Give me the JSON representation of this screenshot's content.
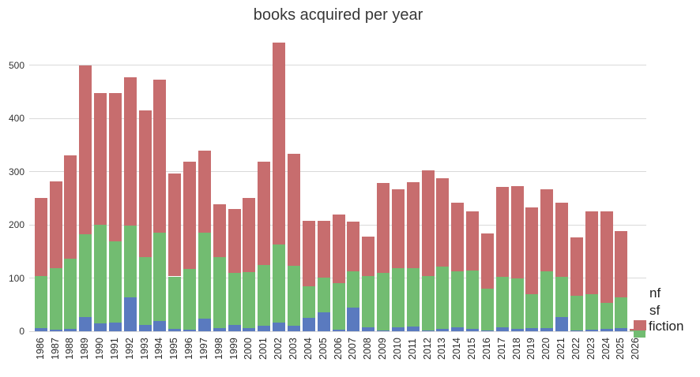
{
  "title": "books acquired per year",
  "colors": {
    "nf": "#5a7abf",
    "sf": "#72bc71",
    "fiction": "#c76d6e",
    "grid": "#d9d9d9",
    "title_text": "#383838",
    "tick_text": "#333333"
  },
  "legend": {
    "items": [
      {
        "label": "nf",
        "color": "#5a7abf"
      },
      {
        "label": "sf",
        "color": "#72bc71"
      },
      {
        "label": "fiction",
        "color": "#c76d6e"
      }
    ]
  },
  "y_axis": {
    "ticks": [
      0,
      100,
      200,
      300,
      400,
      500
    ]
  },
  "chart_data": {
    "type": "bar",
    "stacked": true,
    "title": "books acquired per year",
    "xlabel": "",
    "ylabel": "",
    "ylim": [
      0,
      555
    ],
    "grid": true,
    "legend_position": "right-bottom",
    "categories": [
      1986,
      1987,
      1988,
      1989,
      1990,
      1991,
      1992,
      1993,
      1994,
      1995,
      1996,
      1997,
      1998,
      1999,
      2000,
      2001,
      2002,
      2003,
      2004,
      2005,
      2006,
      2007,
      2008,
      2009,
      2010,
      2011,
      2012,
      2013,
      2014,
      2015,
      2016,
      2017,
      2018,
      2019,
      2020,
      2021,
      2022,
      2023,
      2024,
      2025,
      2026
    ],
    "series": [
      {
        "name": "nf",
        "color": "#5a7abf",
        "values": [
          6,
          3,
          4,
          27,
          15,
          16,
          63,
          12,
          20,
          4,
          3,
          24,
          6,
          12,
          6,
          11,
          17,
          10,
          25,
          35,
          3,
          44,
          7,
          2,
          8,
          9,
          2,
          4,
          8,
          4,
          2,
          7,
          4,
          6,
          6,
          27,
          2,
          3,
          4,
          6,
          0
        ]
      },
      {
        "name": "sf",
        "color": "#72bc71",
        "values": [
          97,
          115,
          133,
          155,
          185,
          153,
          136,
          127,
          165,
          99,
          114,
          161,
          133,
          97,
          105,
          114,
          146,
          113,
          59,
          66,
          88,
          69,
          97,
          107,
          111,
          109,
          101,
          117,
          105,
          110,
          78,
          95,
          96,
          64,
          106,
          75,
          65,
          67,
          50,
          57,
          2
        ]
      },
      {
        "name": "fiction",
        "color": "#c76d6e",
        "values": [
          148,
          164,
          194,
          317,
          247,
          278,
          278,
          276,
          288,
          193,
          201,
          154,
          99,
          121,
          140,
          193,
          379,
          210,
          123,
          107,
          128,
          93,
          74,
          169,
          147,
          162,
          199,
          167,
          129,
          111,
          103,
          169,
          173,
          162,
          155,
          140,
          109,
          155,
          171,
          125,
          2
        ]
      }
    ]
  }
}
